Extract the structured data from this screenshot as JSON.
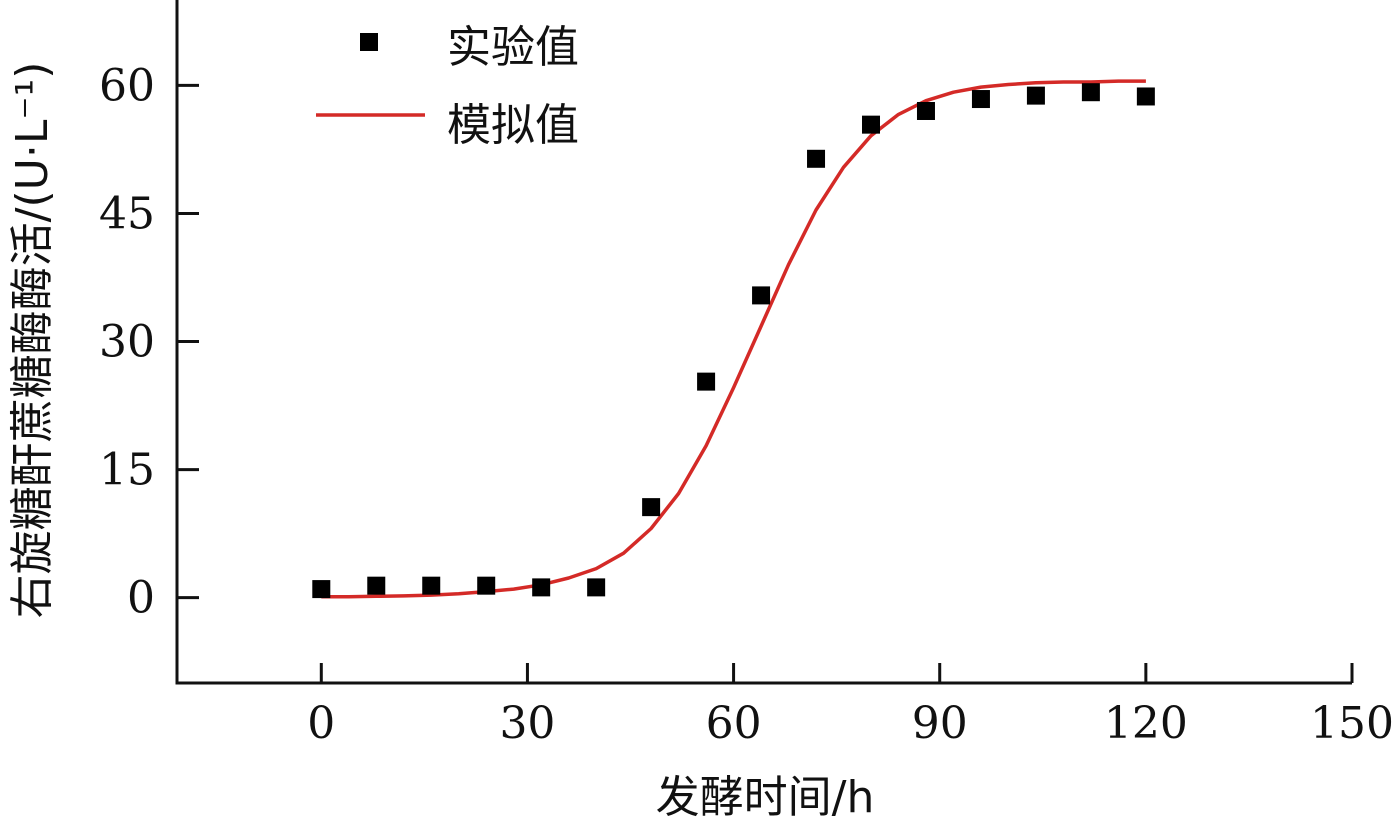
{
  "chart_data": {
    "type": "scatter",
    "title": "",
    "xlabel": "发酵时间/h",
    "ylabel": "右旋糖酐蔗糖酶酶活/(U·L⁻¹)",
    "xlim": [
      -21,
      150
    ],
    "ylim": [
      -10,
      70
    ],
    "xticks": [
      0,
      30,
      60,
      90,
      120,
      150
    ],
    "yticks": [
      0,
      15,
      30,
      45,
      60
    ],
    "grid": false,
    "legend_position": "top-left",
    "series": [
      {
        "name": "实验值",
        "type": "scatter",
        "marker": "square",
        "color": "#000000",
        "x": [
          0,
          8,
          16,
          24,
          32,
          40,
          48,
          56,
          64,
          72,
          80,
          88,
          96,
          104,
          112,
          120
        ],
        "y": [
          1.0,
          1.4,
          1.4,
          1.4,
          1.2,
          1.2,
          10.6,
          25.3,
          35.4,
          51.4,
          55.4,
          57.0,
          58.4,
          58.8,
          59.2,
          58.7
        ]
      },
      {
        "name": "模拟值",
        "type": "line",
        "color": "#d42a27",
        "x": [
          0,
          4,
          8,
          12,
          16,
          20,
          24,
          28,
          32,
          36,
          40,
          44,
          48,
          52,
          56,
          60,
          64,
          68,
          72,
          76,
          80,
          84,
          88,
          92,
          96,
          100,
          104,
          108,
          112,
          116,
          120
        ],
        "y": [
          0.1,
          0.1,
          0.15,
          0.2,
          0.3,
          0.45,
          0.7,
          1.0,
          1.5,
          2.3,
          3.4,
          5.2,
          8.1,
          12.2,
          17.8,
          24.6,
          31.8,
          39.0,
          45.4,
          50.4,
          54.1,
          56.6,
          58.2,
          59.2,
          59.8,
          60.1,
          60.3,
          60.4,
          60.4,
          60.5,
          60.5
        ]
      }
    ]
  }
}
